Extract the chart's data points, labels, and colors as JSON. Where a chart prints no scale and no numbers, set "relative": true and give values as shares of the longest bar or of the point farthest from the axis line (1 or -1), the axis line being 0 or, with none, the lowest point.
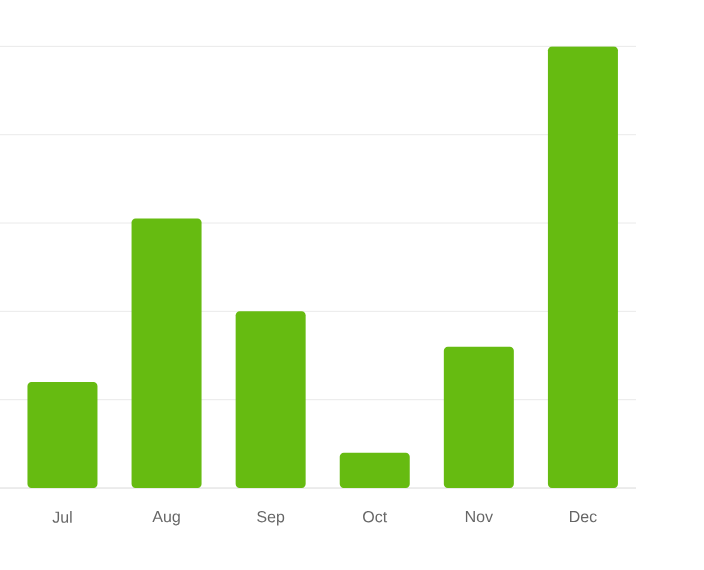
{
  "chart_data": {
    "type": "bar",
    "relative": true,
    "grid": "y",
    "categories": [
      "Jul",
      "Aug",
      "Sep",
      "Oct",
      "Nov",
      "Dec"
    ],
    "values": [
      0.24,
      0.61,
      0.4,
      0.08,
      0.32,
      1
    ],
    "color": "#66bb11"
  }
}
